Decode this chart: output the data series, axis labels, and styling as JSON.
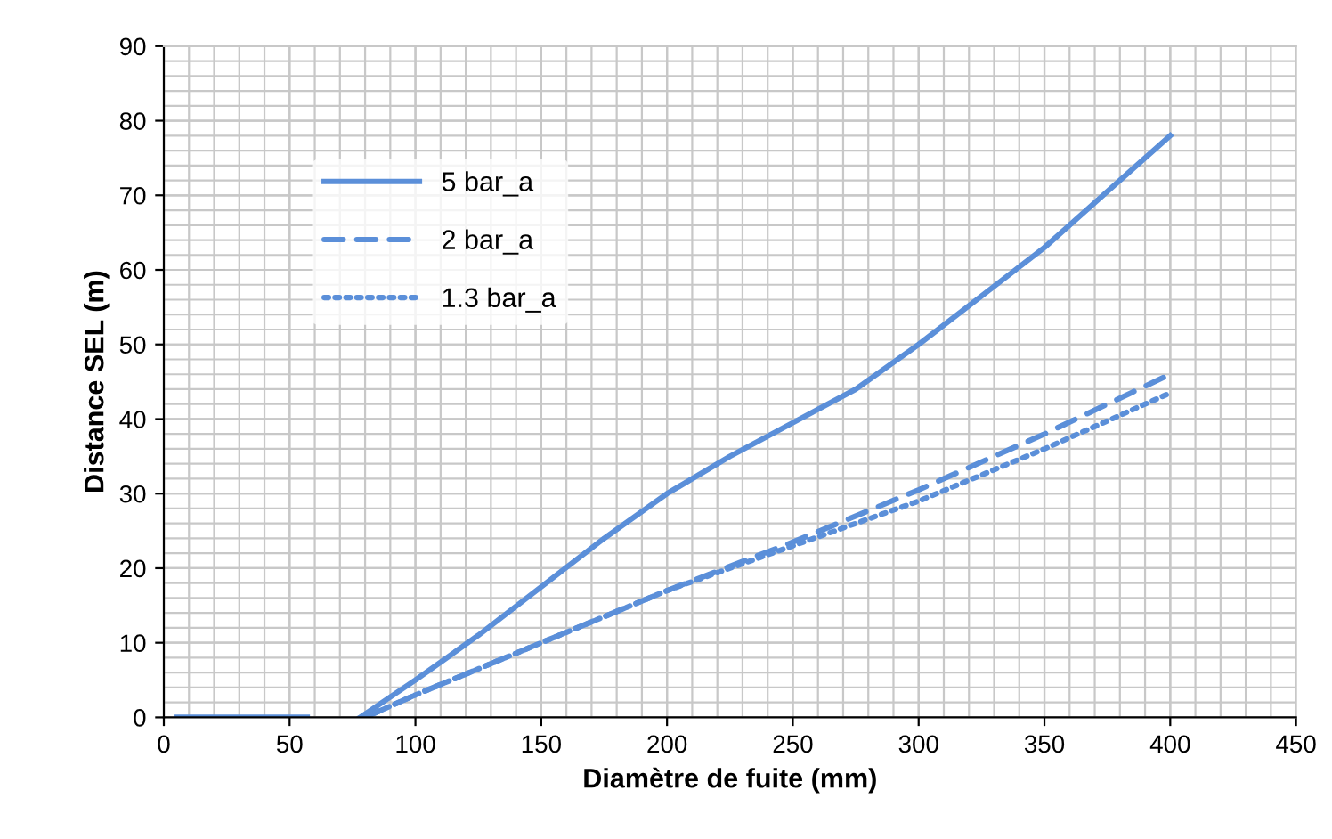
{
  "chart_data": {
    "type": "line",
    "xlabel": "Diamètre de fuite (mm)",
    "ylabel": "Distance SEL (m)",
    "xlim": [
      0,
      450
    ],
    "xticks": [
      0,
      50,
      100,
      150,
      200,
      250,
      300,
      350,
      400,
      450
    ],
    "ylim": [
      0,
      90
    ],
    "yticks": [
      0,
      10,
      20,
      30,
      40,
      50,
      60,
      70,
      80,
      90
    ],
    "grid": true,
    "legend": "top left",
    "marker": "none",
    "series": [
      {
        "name": "5 bar_a",
        "color": "#5b8fd9",
        "line_style": "solid",
        "x": [
          5,
          25,
          50,
          57,
          68,
          78,
          100,
          125,
          150,
          175,
          200,
          225,
          250,
          275,
          300,
          325,
          350,
          375,
          400
        ],
        "values": [
          0,
          0,
          0,
          0,
          null,
          0,
          5,
          11,
          17.5,
          24,
          30,
          35,
          39.5,
          44,
          50,
          56.5,
          63,
          70.5,
          78
        ]
      },
      {
        "name": "2 bar_a",
        "color": "#5b8fd9",
        "line_style": "dashed",
        "x": [
          80,
          100,
          150,
          200,
          250,
          300,
          350,
          400
        ],
        "values": [
          0,
          3,
          10,
          17,
          23.5,
          30.5,
          38,
          46
        ]
      },
      {
        "name": "1.3 bar_a",
        "color": "#5b8fd9",
        "line_style": "dotted",
        "x": [
          80,
          100,
          150,
          200,
          250,
          300,
          350,
          400
        ],
        "values": [
          0,
          3,
          10,
          17,
          23,
          29,
          36,
          43.5
        ]
      }
    ]
  }
}
